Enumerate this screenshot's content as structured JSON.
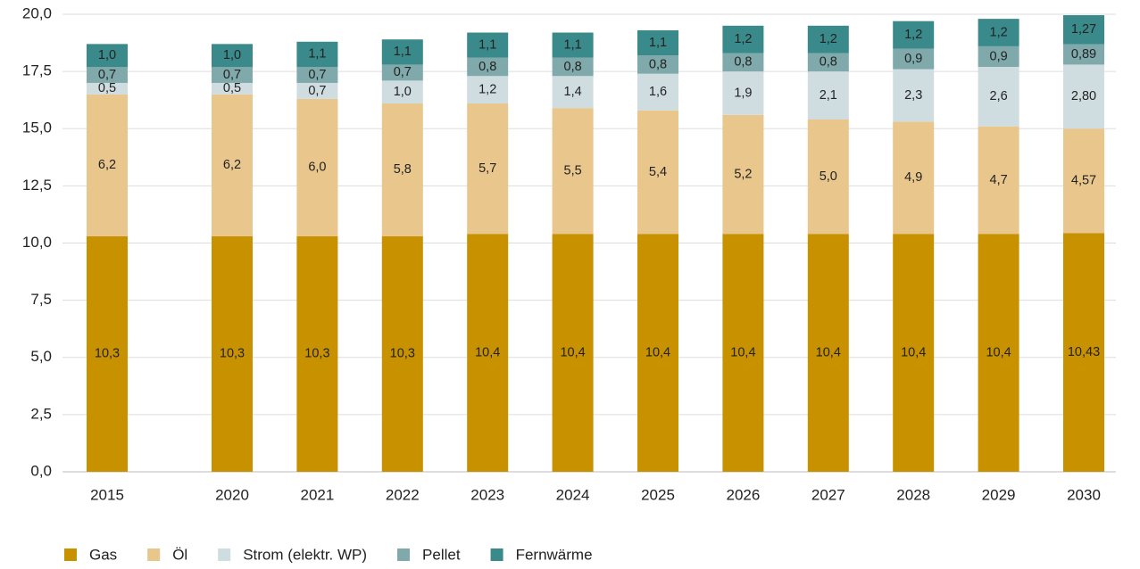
{
  "chart_data": {
    "type": "stacked_bar",
    "categories": [
      "2015",
      "2020",
      "2021",
      "2022",
      "2023",
      "2024",
      "2025",
      "2026",
      "2027",
      "2028",
      "2029",
      "2030"
    ],
    "series": [
      {
        "name": "Gas",
        "color": "#c89100",
        "values": [
          10.3,
          10.3,
          10.3,
          10.3,
          10.4,
          10.4,
          10.4,
          10.4,
          10.4,
          10.4,
          10.4,
          10.43
        ],
        "value_labels": [
          "10,3",
          "10,3",
          "10,3",
          "10,3",
          "10,4",
          "10,4",
          "10,4",
          "10,4",
          "10,4",
          "10,4",
          "10,4",
          "10,43"
        ]
      },
      {
        "name": "Öl",
        "color": "#e8c68c",
        "values": [
          6.2,
          6.2,
          6.0,
          5.8,
          5.7,
          5.5,
          5.4,
          5.2,
          5.0,
          4.9,
          4.7,
          4.57
        ],
        "value_labels": [
          "6,2",
          "6,2",
          "6,0",
          "5,8",
          "5,7",
          "5,5",
          "5,4",
          "5,2",
          "5,0",
          "4,9",
          "4,7",
          "4,57"
        ]
      },
      {
        "name": "Strom (elektr. WP)",
        "color": "#cfdde1",
        "values": [
          0.5,
          0.5,
          0.7,
          1.0,
          1.2,
          1.4,
          1.6,
          1.9,
          2.1,
          2.3,
          2.6,
          2.8
        ],
        "value_labels": [
          "0,5",
          "0,5",
          "0,7",
          "1,0",
          "1,2",
          "1,4",
          "1,6",
          "1,9",
          "2,1",
          "2,3",
          "2,6",
          "2,80"
        ]
      },
      {
        "name": "Pellet",
        "color": "#7fa9aa",
        "values": [
          0.7,
          0.7,
          0.7,
          0.7,
          0.8,
          0.8,
          0.8,
          0.8,
          0.8,
          0.9,
          0.9,
          0.89
        ],
        "value_labels": [
          "0,7",
          "0,7",
          "0,7",
          "0,7",
          "0,8",
          "0,8",
          "0,8",
          "0,8",
          "0,8",
          "0,9",
          "0,9",
          "0,89"
        ]
      },
      {
        "name": "Fernwärme",
        "color": "#3a8a8b",
        "values": [
          1.0,
          1.0,
          1.1,
          1.1,
          1.1,
          1.1,
          1.1,
          1.2,
          1.2,
          1.2,
          1.2,
          1.27
        ],
        "value_labels": [
          "1,0",
          "1,0",
          "1,1",
          "1,1",
          "1,1",
          "1,1",
          "1,1",
          "1,2",
          "1,2",
          "1,2",
          "1,2",
          "1,27"
        ]
      }
    ],
    "ylim": [
      0,
      20
    ],
    "yticks": [
      {
        "value": 0,
        "label": "0,0"
      },
      {
        "value": 2.5,
        "label": "2,5"
      },
      {
        "value": 5,
        "label": "5,0"
      },
      {
        "value": 7.5,
        "label": "7,5"
      },
      {
        "value": 10,
        "label": "10,0"
      },
      {
        "value": 12.5,
        "label": "12,5"
      },
      {
        "value": 15,
        "label": "15,0"
      },
      {
        "value": 17.5,
        "label": "17,5"
      },
      {
        "value": 20,
        "label": "20,0"
      }
    ],
    "grid": true,
    "legend": "bottom-left"
  }
}
